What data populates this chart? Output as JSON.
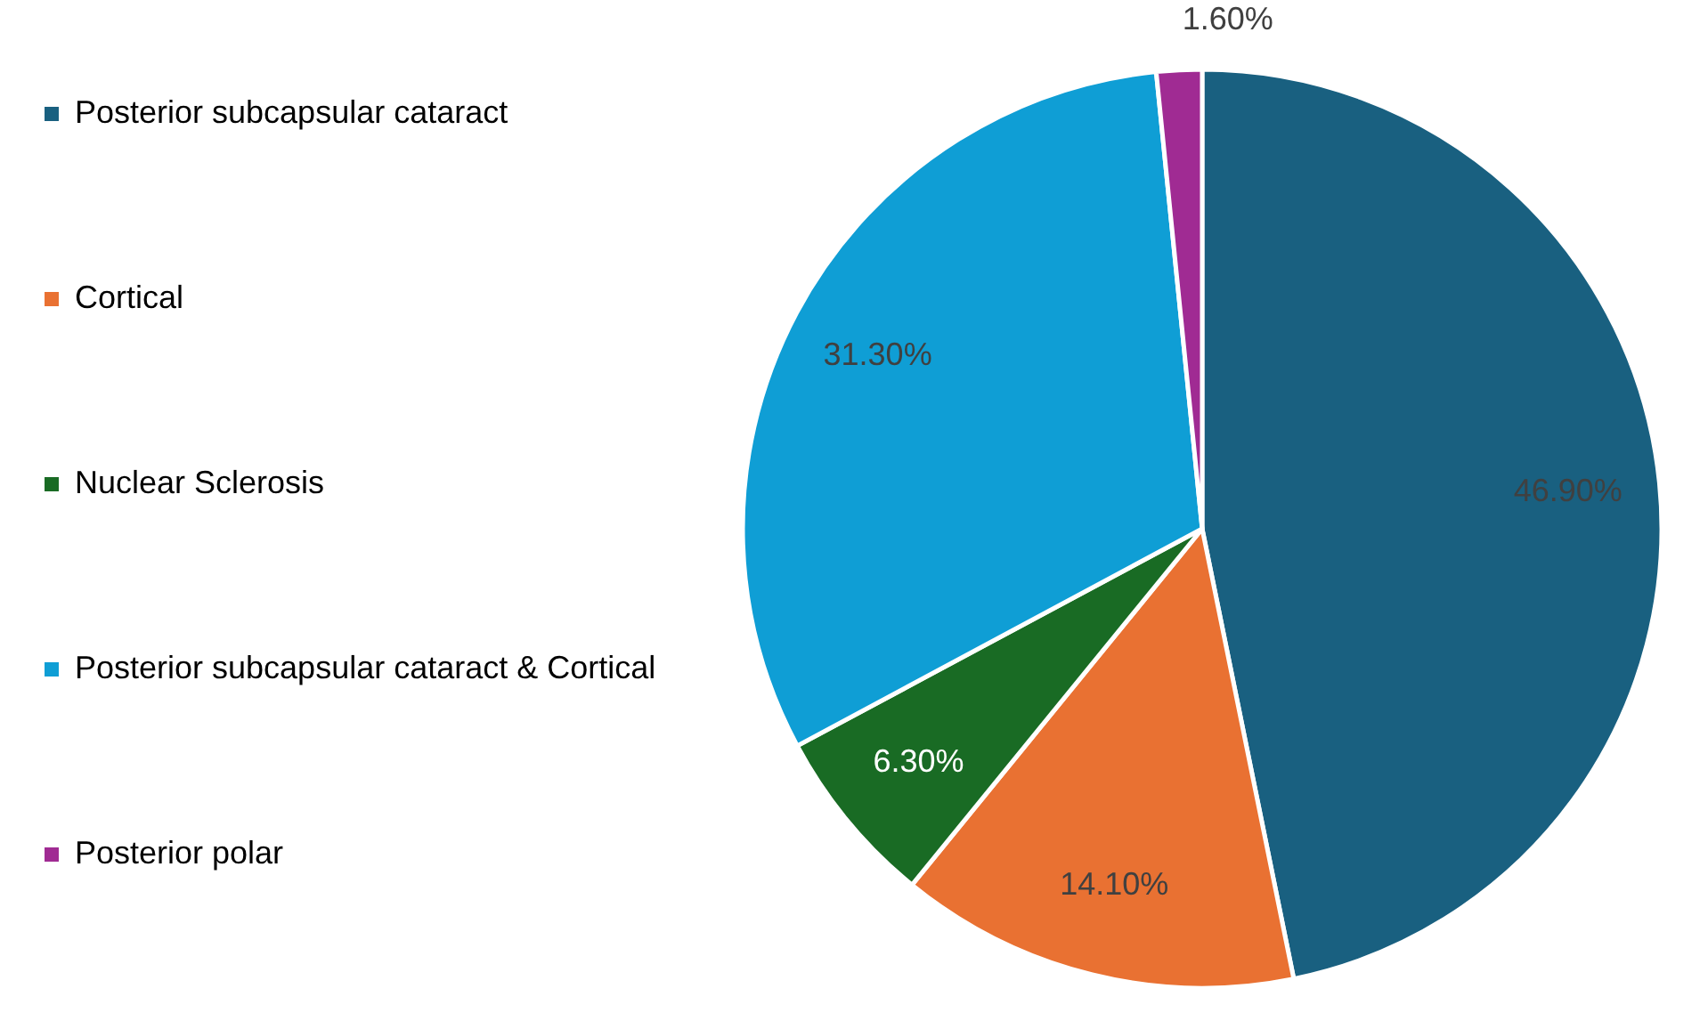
{
  "chart_data": {
    "type": "pie",
    "categories": [
      "Posterior subcapsular cataract",
      "Cortical",
      "Nuclear Sclerosis",
      "Posterior subcapsular cataract & Cortical",
      "Posterior polar"
    ],
    "values": [
      46.9,
      14.1,
      6.3,
      31.3,
      1.6
    ],
    "colors": [
      "#196080",
      "#e97132",
      "#196b24",
      "#0f9ed5",
      "#a02b93"
    ],
    "value_labels": [
      "46.90%",
      "14.10%",
      "6.30%",
      "31.30%",
      "1.60%"
    ],
    "legend": "left"
  }
}
